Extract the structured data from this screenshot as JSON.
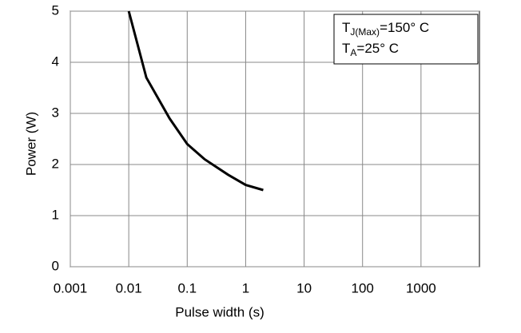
{
  "chart_data": {
    "type": "line",
    "y_label": "Power (W)",
    "x_label": "Pulse width (s)",
    "x": [
      0.01,
      0.02,
      0.05,
      0.1,
      0.2,
      0.5,
      1,
      2
    ],
    "series": [
      {
        "name": "Power",
        "color": "#000000",
        "values": [
          5,
          3.7,
          2.9,
          2.4,
          2.1,
          1.8,
          1.6,
          1.5
        ]
      }
    ],
    "xscale": "log",
    "xlim": [
      0.001,
      10000
    ],
    "xticks": [
      0.001,
      0.01,
      0.1,
      1,
      10,
      100,
      1000
    ],
    "ylim": [
      0,
      5
    ],
    "yticks": [
      0,
      1,
      2,
      3,
      4,
      5
    ],
    "grid": true,
    "annotations": [
      {
        "main": "T",
        "sub": "J(Max)",
        "rest": "=150° C"
      },
      {
        "main": "T",
        "sub": "A",
        "rest": "=25° C"
      }
    ]
  }
}
